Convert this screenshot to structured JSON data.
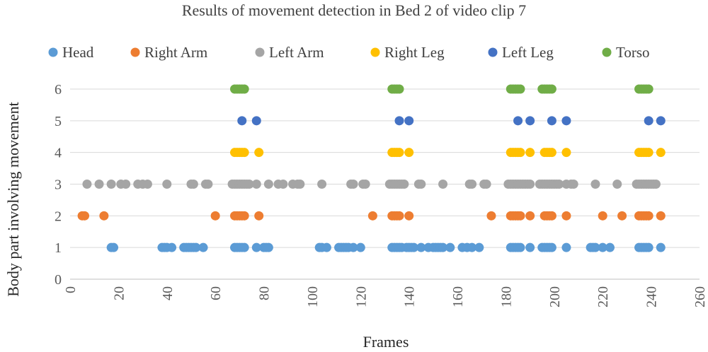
{
  "chart_data": {
    "type": "scatter",
    "title": "Results of movement detection in Bed 2 of video clip 7",
    "xlabel": "Frames",
    "ylabel": "Body part involving movement",
    "xlim": [
      0,
      260
    ],
    "ylim": [
      0,
      6
    ],
    "x_ticks": [
      0,
      20,
      40,
      60,
      80,
      100,
      120,
      140,
      160,
      180,
      200,
      220,
      240,
      260
    ],
    "y_ticks": [
      0,
      1,
      2,
      3,
      4,
      5,
      6
    ],
    "grid": "horizontal",
    "legend_position": "top",
    "series": [
      {
        "name": "Head",
        "color": "#5B9BD5",
        "y": 1,
        "x": [
          17,
          18,
          38,
          39,
          40,
          42,
          47,
          48,
          49,
          50,
          51,
          52,
          55,
          68,
          69,
          70,
          71,
          72,
          77,
          80,
          81,
          82,
          103,
          104,
          106,
          111,
          112,
          113,
          114,
          115,
          117,
          120,
          133,
          134,
          135,
          136,
          137,
          139,
          140,
          141,
          142,
          145,
          148,
          150,
          151,
          152,
          153,
          154,
          157,
          162,
          164,
          166,
          169,
          182,
          183,
          184,
          185,
          186,
          190,
          195,
          196,
          197,
          198,
          199,
          205,
          215,
          216,
          217,
          220,
          223,
          235,
          236,
          237,
          238,
          239,
          244
        ]
      },
      {
        "name": "Right Arm",
        "color": "#ED7D31",
        "y": 2,
        "x": [
          5,
          6,
          14,
          60,
          68,
          69,
          70,
          71,
          72,
          78,
          125,
          133,
          134,
          135,
          136,
          140,
          174,
          182,
          183,
          184,
          185,
          186,
          190,
          196,
          197,
          198,
          199,
          205,
          220,
          228,
          235,
          236,
          237,
          238,
          239,
          244
        ]
      },
      {
        "name": "Left Arm",
        "color": "#A5A5A5",
        "y": 3,
        "x": [
          7,
          12,
          17,
          21,
          23,
          28,
          30,
          32,
          40,
          50,
          51,
          56,
          57,
          67,
          68,
          69,
          70,
          71,
          72,
          73,
          74,
          77,
          82,
          86,
          88,
          92,
          94,
          95,
          104,
          116,
          117,
          121,
          122,
          132,
          133,
          134,
          135,
          136,
          137,
          138,
          144,
          145,
          154,
          165,
          166,
          171,
          172,
          181,
          182,
          183,
          184,
          185,
          186,
          187,
          188,
          189,
          190,
          194,
          195,
          196,
          197,
          198,
          199,
          200,
          201,
          202,
          205,
          207,
          208,
          217,
          226,
          234,
          235,
          236,
          237,
          238,
          239,
          240,
          241,
          242
        ]
      },
      {
        "name": "Right Leg",
        "color": "#FFC000",
        "y": 4,
        "x": [
          68,
          69,
          70,
          71,
          72,
          78,
          133,
          134,
          135,
          136,
          140,
          182,
          183,
          184,
          185,
          186,
          190,
          196,
          197,
          198,
          199,
          205,
          235,
          236,
          237,
          238,
          239,
          244
        ]
      },
      {
        "name": "Left Leg",
        "color": "#4472C4",
        "y": 5,
        "x": [
          71,
          77,
          136,
          140,
          185,
          190,
          199,
          205,
          239,
          244
        ]
      },
      {
        "name": "Torso",
        "color": "#70AD47",
        "y": 6,
        "x": [
          68,
          69,
          70,
          71,
          72,
          133,
          134,
          135,
          136,
          182,
          183,
          184,
          185,
          186,
          195,
          196,
          197,
          198,
          199,
          235,
          236,
          237,
          238,
          239
        ]
      }
    ]
  }
}
